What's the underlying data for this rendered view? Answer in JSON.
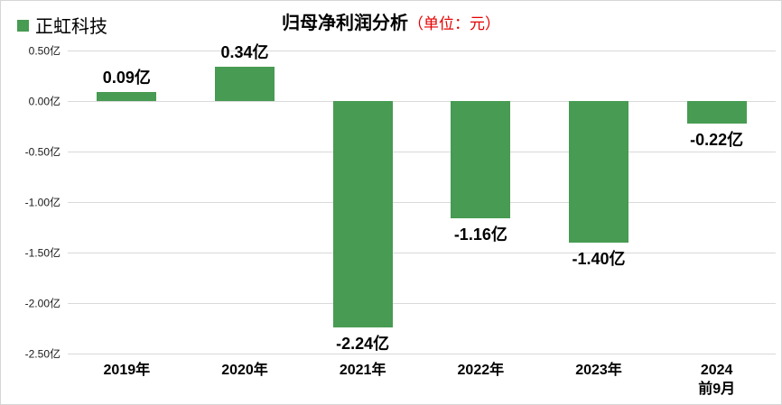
{
  "chart_data": {
    "type": "bar",
    "title": "归母净利润分析",
    "title_unit": "（单位：元）",
    "title_unit_color": "#e60000",
    "categories": [
      "2019年",
      "2020年",
      "2021年",
      "2022年",
      "2023年",
      "2024\n前9月"
    ],
    "series": [
      {
        "name": "正虹科技",
        "values": [
          0.09,
          0.34,
          -2.24,
          -1.16,
          -1.4,
          -0.22
        ],
        "value_labels": [
          "0.09亿",
          "0.34亿",
          "-2.24亿",
          "-1.16亿",
          "-1.40亿",
          "-0.22亿"
        ],
        "color": "#479b52"
      }
    ],
    "xlabel": "",
    "ylabel": "",
    "ylim": [
      -2.5,
      0.5
    ],
    "y_ticks": [
      0.5,
      0,
      -0.5,
      -1,
      -1.5,
      -2,
      -2.5
    ],
    "y_tick_labels": [
      "0.50亿",
      "0.00亿",
      "-0.50亿",
      "-1.00亿",
      "-1.50亿",
      "-2.00亿",
      "-2.50亿"
    ],
    "grid": true,
    "gridline_color": "#d9d9d9",
    "legend_position": "top-left"
  }
}
